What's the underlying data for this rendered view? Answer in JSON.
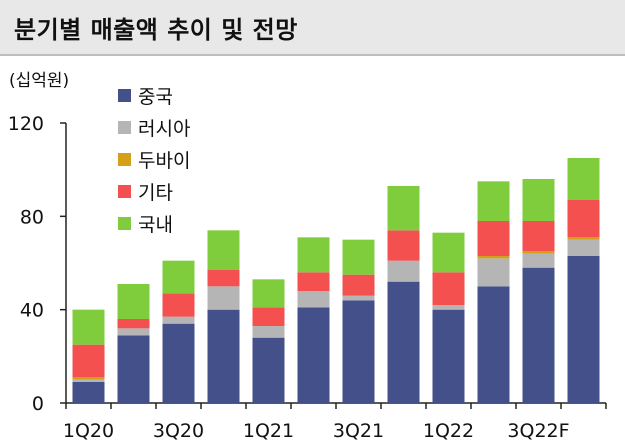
{
  "header": {
    "title": "분기별 매출액 추이 및 전망"
  },
  "chart_data": {
    "type": "bar",
    "stacked": true,
    "title": "분기별 매출액 추이 및 전망",
    "unit_label": "(십억원)",
    "ylim": [
      0,
      120
    ],
    "yticks": [
      0,
      40,
      80,
      120
    ],
    "categories": [
      "1Q20",
      "2Q20",
      "3Q20",
      "4Q20",
      "1Q21",
      "2Q21",
      "3Q21",
      "4Q21",
      "1Q22",
      "2Q22",
      "3Q22F",
      "4Q22F"
    ],
    "xtick_labels": [
      "1Q20",
      "",
      "3Q20",
      "",
      "1Q21",
      "",
      "3Q21",
      "",
      "1Q22",
      "",
      "3Q22F",
      ""
    ],
    "grid": false,
    "legend_position": "top-left",
    "series": [
      {
        "name": "중국",
        "color": "#44508a",
        "values": [
          9,
          29,
          34,
          40,
          28,
          41,
          44,
          52,
          40,
          50,
          58,
          63
        ]
      },
      {
        "name": "러시아",
        "color": "#b5b5b5",
        "values": [
          1,
          3,
          3,
          10,
          5,
          7,
          2,
          9,
          2,
          12,
          6,
          7
        ]
      },
      {
        "name": "두바이",
        "color": "#d4a017",
        "values": [
          1,
          0,
          0,
          0,
          0,
          0,
          0,
          0,
          0,
          1,
          1,
          1
        ]
      },
      {
        "name": "기타",
        "color": "#f4504f",
        "values": [
          14,
          4,
          10,
          7,
          8,
          8,
          9,
          13,
          14,
          15,
          13,
          16
        ]
      },
      {
        "name": "국내",
        "color": "#7fcc3c",
        "values": [
          15,
          15,
          14,
          17,
          12,
          15,
          15,
          19,
          17,
          17,
          18,
          18
        ]
      }
    ]
  }
}
